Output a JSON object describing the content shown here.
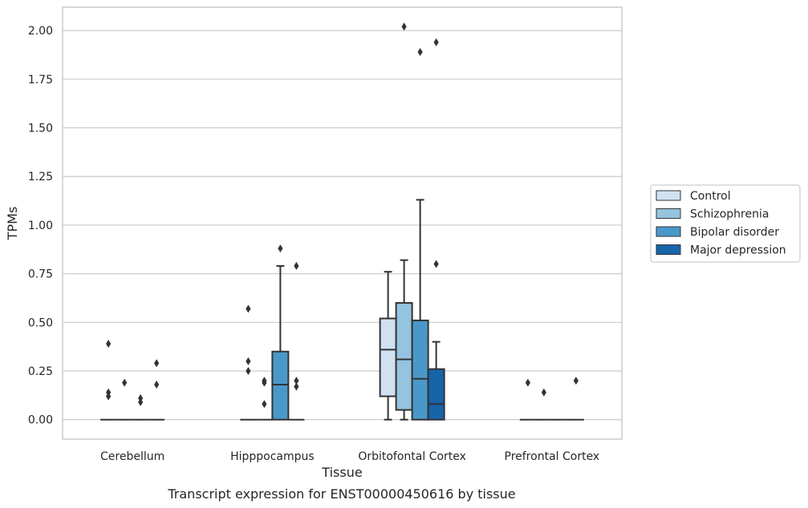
{
  "chart_data": {
    "type": "box",
    "xlabel": "Tissue",
    "ylabel": "TPMs",
    "caption": "Transcript expression for ENST00000450616 by tissue",
    "ylim": [
      -0.1,
      2.12
    ],
    "yticks": [
      "0.00",
      "0.25",
      "0.50",
      "0.75",
      "1.00",
      "1.25",
      "1.50",
      "1.75",
      "2.00"
    ],
    "grid": "horizontal",
    "legend_position": "right",
    "categories": [
      "Cerebellum",
      "Hipppocampus",
      "Orbitofontal Cortex",
      "Prefrontal Cortex"
    ],
    "series": [
      {
        "name": "Control",
        "color": "#d0e1f2",
        "boxes": [
          {
            "q1": 0,
            "median": 0,
            "q3": 0,
            "whislo": 0,
            "whishi": 0,
            "fliers": [
              0.39,
              0.14,
              0.12
            ]
          },
          {
            "q1": 0,
            "median": 0,
            "q3": 0,
            "whislo": 0,
            "whishi": 0,
            "fliers": [
              0.57,
              0.3,
              0.25
            ]
          },
          {
            "q1": 0.12,
            "median": 0.36,
            "q3": 0.52,
            "whislo": 0,
            "whishi": 0.76,
            "fliers": []
          },
          {
            "q1": 0,
            "median": 0,
            "q3": 0,
            "whislo": 0,
            "whishi": 0,
            "fliers": [
              0.19
            ]
          }
        ]
      },
      {
        "name": "Schizophrenia",
        "color": "#94c4df",
        "boxes": [
          {
            "q1": 0,
            "median": 0,
            "q3": 0,
            "whislo": 0,
            "whishi": 0,
            "fliers": [
              0.19
            ]
          },
          {
            "q1": 0,
            "median": 0,
            "q3": 0,
            "whislo": 0,
            "whishi": 0,
            "fliers": [
              0.08,
              0.2,
              0.19
            ]
          },
          {
            "q1": 0.05,
            "median": 0.31,
            "q3": 0.6,
            "whislo": 0,
            "whishi": 0.82,
            "fliers": [
              2.02
            ]
          },
          {
            "q1": 0,
            "median": 0,
            "q3": 0,
            "whislo": 0,
            "whishi": 0,
            "fliers": [
              0.14
            ]
          }
        ]
      },
      {
        "name": "Bipolar disorder",
        "color": "#4a98c9",
        "boxes": [
          {
            "q1": 0,
            "median": 0,
            "q3": 0,
            "whislo": 0,
            "whishi": 0,
            "fliers": [
              0.11,
              0.09
            ]
          },
          {
            "q1": 0,
            "median": 0.18,
            "q3": 0.35,
            "whislo": 0,
            "whishi": 0.79,
            "fliers": [
              0.88
            ]
          },
          {
            "q1": 0,
            "median": 0.21,
            "q3": 0.51,
            "whislo": 0,
            "whishi": 1.13,
            "fliers": [
              1.89
            ]
          },
          {
            "q1": 0,
            "median": 0,
            "q3": 0,
            "whislo": 0,
            "whishi": 0,
            "fliers": []
          }
        ]
      },
      {
        "name": "Major depression",
        "color": "#1764ab",
        "boxes": [
          {
            "q1": 0,
            "median": 0,
            "q3": 0,
            "whislo": 0,
            "whishi": 0,
            "fliers": [
              0.29,
              0.18
            ]
          },
          {
            "q1": 0,
            "median": 0,
            "q3": 0,
            "whislo": 0,
            "whishi": 0,
            "fliers": [
              0.79,
              0.2,
              0.17
            ]
          },
          {
            "q1": 0,
            "median": 0.08,
            "q3": 0.26,
            "whislo": 0,
            "whishi": 0.4,
            "fliers": [
              1.94,
              0.8
            ]
          },
          {
            "q1": 0,
            "median": 0,
            "q3": 0,
            "whislo": 0,
            "whishi": 0,
            "fliers": [
              0.2
            ]
          }
        ]
      }
    ]
  }
}
